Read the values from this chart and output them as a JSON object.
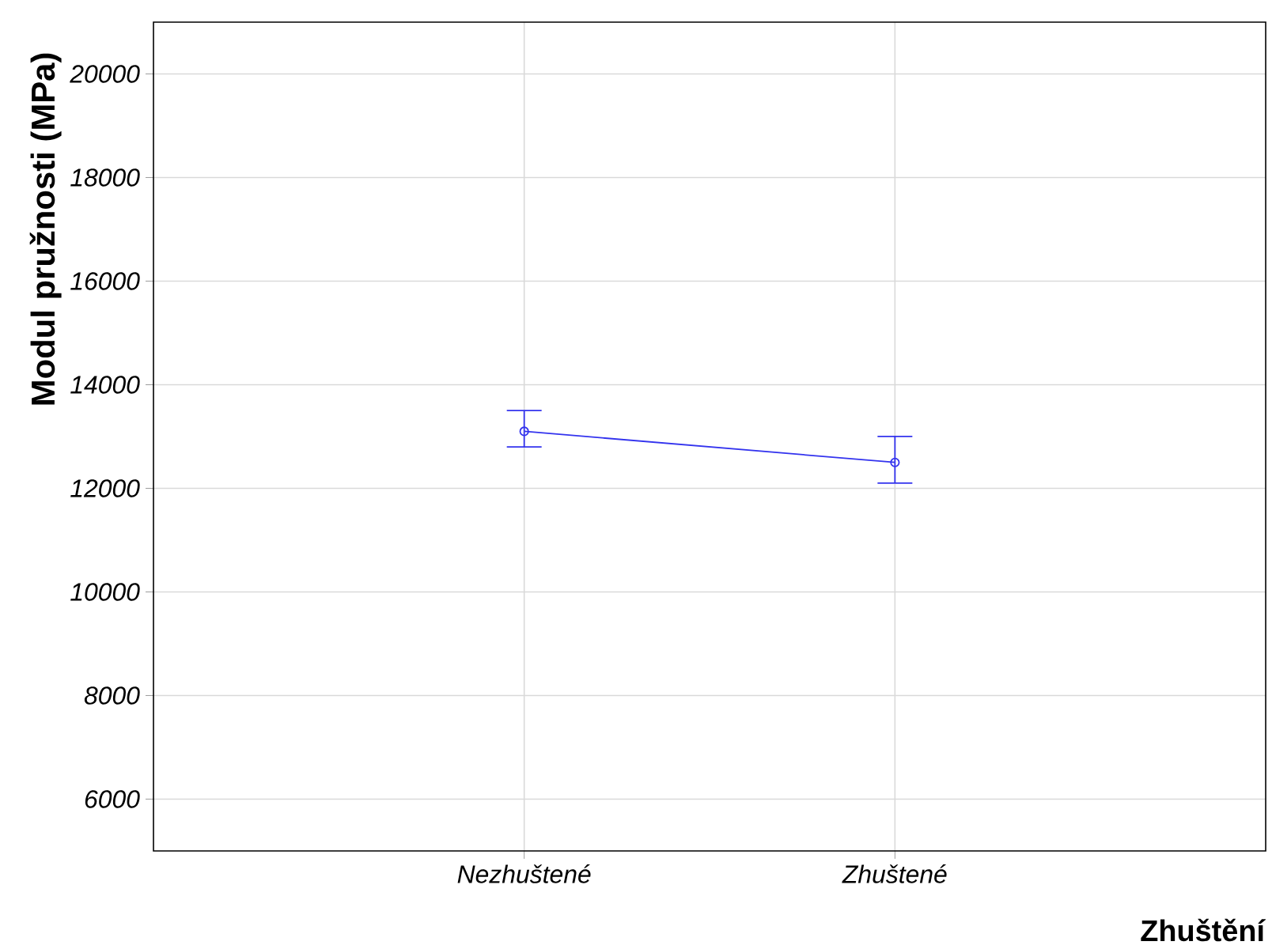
{
  "chart_data": {
    "type": "line",
    "xlabel": "Zhuštění",
    "ylabel": "Modul pružnosti (MPa)",
    "categories": [
      "Nezhuštené",
      "Zhuštené"
    ],
    "series": [
      {
        "color": "#3333ee",
        "values": [
          13100,
          12500
        ],
        "errors": [
          [
            12800,
            13500
          ],
          [
            12100,
            13000
          ]
        ]
      }
    ],
    "ylim": [
      5000,
      21000
    ],
    "yticks": [
      6000,
      8000,
      10000,
      12000,
      14000,
      16000,
      18000,
      20000
    ],
    "grid": true,
    "marker": "circle",
    "line_style": "solid"
  }
}
